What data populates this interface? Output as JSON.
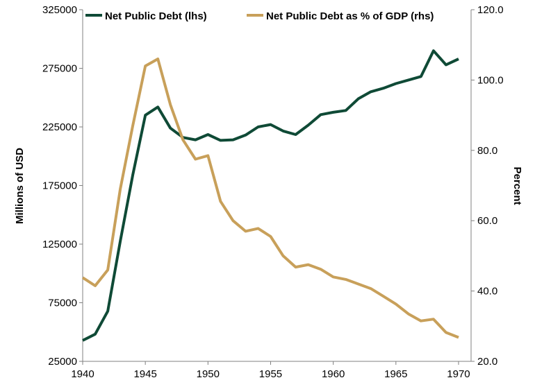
{
  "chart_data": {
    "type": "line",
    "title": "",
    "xlabel": "",
    "ylabel": "Millions of USD",
    "y2label": "Percent",
    "xlim": [
      1940,
      1971
    ],
    "ylim": [
      25000,
      325000
    ],
    "y2lim": [
      20.0,
      120.0
    ],
    "x_ticks": [
      "1940",
      "1945",
      "1950",
      "1955",
      "1960",
      "1965",
      "1970"
    ],
    "y_ticks": [
      "25000",
      "75000",
      "125000",
      "175000",
      "225000",
      "275000",
      "325000"
    ],
    "y2_ticks": [
      "20.0",
      "40.0",
      "60.0",
      "80.0",
      "100.0",
      "120.0"
    ],
    "grid": false,
    "legend_position": "top",
    "series": [
      {
        "name": "Net Public Debt (lhs)",
        "axis": "left",
        "color": "#0f4a36",
        "x": [
          1940,
          1941,
          1942,
          1943,
          1944,
          1945,
          1946,
          1947,
          1948,
          1949,
          1950,
          1951,
          1952,
          1953,
          1954,
          1955,
          1956,
          1957,
          1958,
          1959,
          1960,
          1961,
          1962,
          1963,
          1964,
          1965,
          1966,
          1967,
          1968,
          1969,
          1970
        ],
        "values": [
          42800,
          48200,
          67800,
          127500,
          184000,
          235000,
          242000,
          224000,
          216000,
          214000,
          218500,
          213500,
          214000,
          218000,
          225000,
          227000,
          221500,
          218500,
          226500,
          235500,
          237500,
          239000,
          249000,
          255000,
          258000,
          262000,
          265000,
          268000,
          290000,
          278000,
          283000
        ]
      },
      {
        "name": "Net Public Debt as % of GDP (rhs)",
        "axis": "right",
        "color": "#c8a05a",
        "x": [
          1940,
          1941,
          1942,
          1943,
          1944,
          1945,
          1946,
          1947,
          1948,
          1949,
          1950,
          1951,
          1952,
          1953,
          1954,
          1955,
          1956,
          1957,
          1958,
          1959,
          1960,
          1961,
          1962,
          1963,
          1964,
          1965,
          1966,
          1967,
          1968,
          1969,
          1970
        ],
        "values": [
          43.8,
          41.5,
          46.0,
          69.0,
          87.0,
          104.0,
          106.0,
          93.0,
          83.0,
          77.5,
          78.5,
          65.5,
          60.0,
          57.0,
          57.8,
          55.5,
          50.0,
          46.8,
          47.5,
          46.2,
          44.0,
          43.3,
          42.0,
          40.7,
          38.5,
          36.3,
          33.5,
          31.5,
          32.0,
          28.2,
          26.8
        ]
      }
    ]
  }
}
